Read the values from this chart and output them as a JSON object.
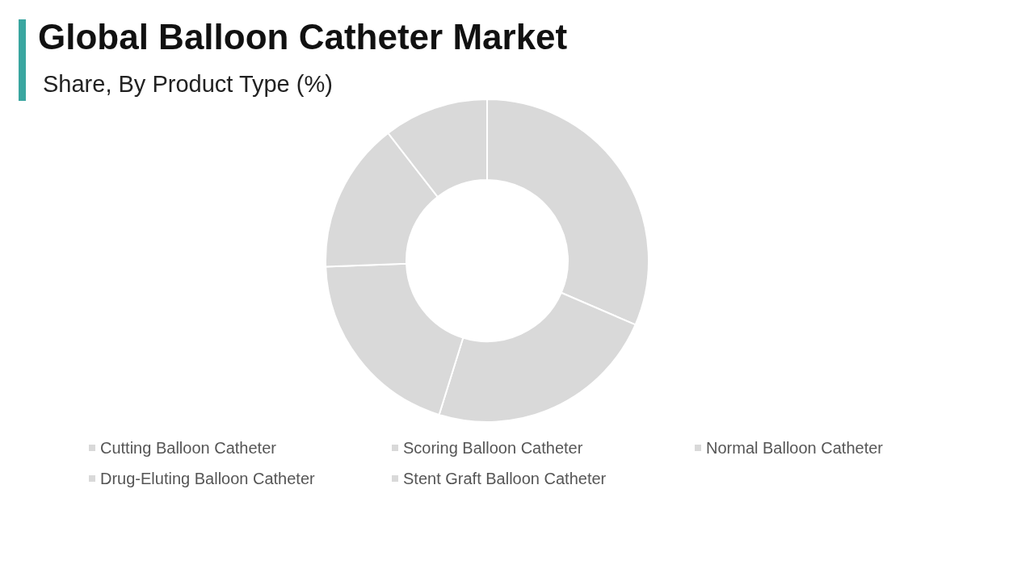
{
  "chart_data": {
    "type": "donut",
    "title": "Global Balloon Catheter Market",
    "subtitle": "Share, By Product Type (%)",
    "categories": [
      "Cutting Balloon Catheter",
      "Scoring Balloon Catheter",
      "Normal Balloon Catheter",
      "Drug-Eluting Balloon Catheter",
      "Stent Graft Balloon Catheter"
    ],
    "values": [
      31.5,
      23.3,
      19.6,
      15.1,
      10.5
    ],
    "colors": [
      "#d9d9d9",
      "#d9d9d9",
      "#d9d9d9",
      "#d9d9d9",
      "#d9d9d9"
    ],
    "legend": "bottom"
  }
}
